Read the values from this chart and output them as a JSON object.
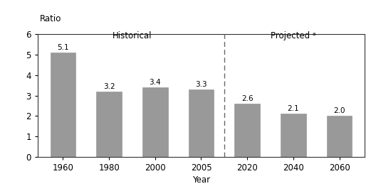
{
  "categories": [
    "1960",
    "1980",
    "2000",
    "2005",
    "2020",
    "2040",
    "2060"
  ],
  "values": [
    5.1,
    3.2,
    3.4,
    3.3,
    2.6,
    2.1,
    2.0
  ],
  "bar_color": "#999999",
  "bar_edge_color": "#999999",
  "ylabel": "Ratio",
  "xlabel": "Year",
  "ylim": [
    0,
    6
  ],
  "yticks": [
    0,
    1,
    2,
    3,
    4,
    5,
    6
  ],
  "historical_label": "Historical",
  "projected_label": "Projected ᵃ",
  "background_color": "#ffffff",
  "font_size": 8.5,
  "value_fontsize": 7.5,
  "section_label_fontsize": 8.5,
  "bar_width": 0.55
}
